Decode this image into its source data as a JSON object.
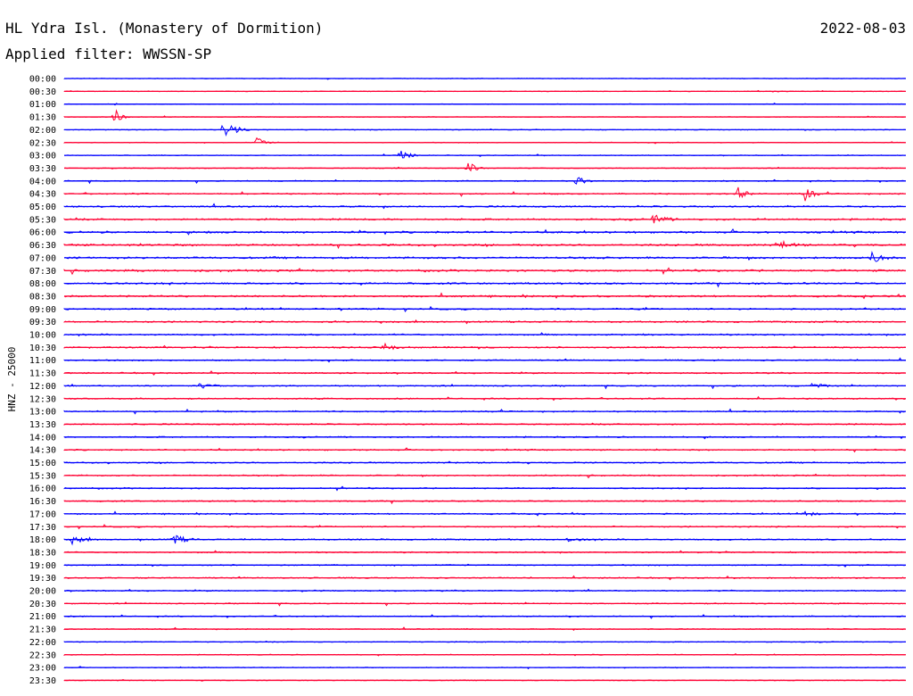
{
  "chart_data": {
    "type": "line",
    "title": "HL Ydra Isl. (Monastery of Dormition)",
    "subtitle": "Applied filter: WWSSN-SP",
    "date": "2022-08-03",
    "ylabel": "HNZ - 25000",
    "trace_colors": [
      "#0000ff",
      "#ff0033"
    ],
    "baseline_color": "#0000ff",
    "row_labels": [
      "00:00",
      "00:30",
      "01:00",
      "01:30",
      "02:00",
      "02:30",
      "03:00",
      "03:30",
      "04:00",
      "04:30",
      "05:00",
      "05:30",
      "06:00",
      "06:30",
      "07:00",
      "07:30",
      "08:00",
      "08:30",
      "09:00",
      "09:30",
      "10:00",
      "10:30",
      "11:00",
      "11:30",
      "12:00",
      "12:30",
      "13:00",
      "13:30",
      "14:00",
      "14:30",
      "15:00",
      "15:30",
      "16:00",
      "16:30",
      "17:00",
      "17:30",
      "18:00",
      "18:30",
      "19:00",
      "19:30",
      "20:00",
      "20:30",
      "21:00",
      "21:30",
      "22:00",
      "22:30",
      "23:00",
      "23:30"
    ],
    "row_noise_amplitude": [
      0.3,
      0.3,
      0.3,
      0.3,
      0.35,
      0.35,
      0.35,
      0.4,
      0.5,
      0.6,
      0.7,
      0.8,
      0.9,
      0.9,
      0.9,
      0.9,
      0.8,
      0.8,
      0.7,
      0.7,
      0.7,
      0.7,
      0.6,
      0.6,
      0.6,
      0.6,
      0.6,
      0.6,
      0.6,
      0.6,
      0.6,
      0.6,
      0.6,
      0.6,
      0.6,
      0.6,
      0.6,
      0.6,
      0.55,
      0.55,
      0.55,
      0.5,
      0.5,
      0.45,
      0.4,
      0.4,
      0.35,
      0.35
    ],
    "events": [
      {
        "row": 3,
        "x_fraction": 0.06,
        "amplitude": 9,
        "duration": 0.02
      },
      {
        "row": 4,
        "x_fraction": 0.19,
        "amplitude": 14,
        "duration": 0.03
      },
      {
        "row": 5,
        "x_fraction": 0.23,
        "amplitude": 7,
        "duration": 0.02
      },
      {
        "row": 6,
        "x_fraction": 0.4,
        "amplitude": 9,
        "duration": 0.02
      },
      {
        "row": 7,
        "x_fraction": 0.48,
        "amplitude": 8,
        "duration": 0.02
      },
      {
        "row": 8,
        "x_fraction": 0.61,
        "amplitude": 7,
        "duration": 0.02
      },
      {
        "row": 9,
        "x_fraction": 0.8,
        "amplitude": 8,
        "duration": 0.02
      },
      {
        "row": 9,
        "x_fraction": 0.88,
        "amplitude": 9,
        "duration": 0.02
      },
      {
        "row": 11,
        "x_fraction": 0.7,
        "amplitude": 6,
        "duration": 0.03
      },
      {
        "row": 13,
        "x_fraction": 0.85,
        "amplitude": 6,
        "duration": 0.03
      },
      {
        "row": 14,
        "x_fraction": 0.96,
        "amplitude": 6,
        "duration": 0.03
      },
      {
        "row": 21,
        "x_fraction": 0.38,
        "amplitude": 4,
        "duration": 0.03
      },
      {
        "row": 24,
        "x_fraction": 0.16,
        "amplitude": 3,
        "duration": 0.03
      },
      {
        "row": 24,
        "x_fraction": 0.89,
        "amplitude": 3,
        "duration": 0.03
      },
      {
        "row": 36,
        "x_fraction": 0.01,
        "amplitude": 5,
        "duration": 0.03
      },
      {
        "row": 36,
        "x_fraction": 0.13,
        "amplitude": 6,
        "duration": 0.03
      },
      {
        "row": 36,
        "x_fraction": 0.6,
        "amplitude": 4,
        "duration": 0.03
      },
      {
        "row": 34,
        "x_fraction": 0.88,
        "amplitude": 3,
        "duration": 0.03
      }
    ]
  }
}
